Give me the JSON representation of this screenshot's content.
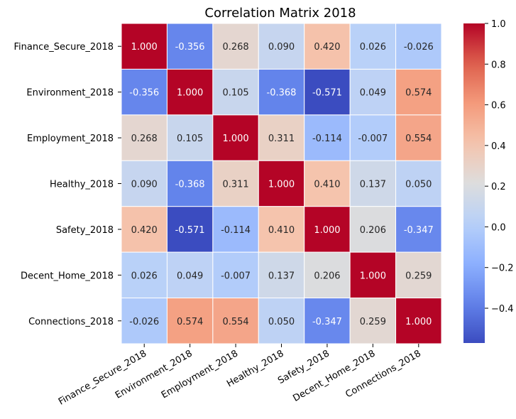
{
  "chart_data": {
    "type": "heatmap",
    "title": "Correlation Matrix 2018",
    "x_labels": [
      "Finance_Secure_2018",
      "Environment_2018",
      "Employment_2018",
      "Healthy_2018",
      "Safety_2018",
      "Decent_Home_2018",
      "Connections_2018"
    ],
    "y_labels": [
      "Finance_Secure_2018",
      "Environment_2018",
      "Employment_2018",
      "Healthy_2018",
      "Safety_2018",
      "Decent_Home_2018",
      "Connections_2018"
    ],
    "values": [
      [
        1.0,
        -0.356,
        0.268,
        0.09,
        0.42,
        0.026,
        -0.026
      ],
      [
        -0.356,
        1.0,
        0.105,
        -0.368,
        -0.571,
        0.049,
        0.574
      ],
      [
        0.268,
        0.105,
        1.0,
        0.311,
        -0.114,
        -0.007,
        0.554
      ],
      [
        0.09,
        -0.368,
        0.311,
        1.0,
        0.41,
        0.137,
        0.05
      ],
      [
        0.42,
        -0.571,
        -0.114,
        0.41,
        1.0,
        0.206,
        -0.347
      ],
      [
        0.026,
        0.049,
        -0.007,
        0.137,
        0.206,
        1.0,
        0.259
      ],
      [
        -0.026,
        0.574,
        0.554,
        0.05,
        -0.347,
        0.259,
        1.0
      ]
    ],
    "cell_labels": [
      [
        "1.000",
        "-0.356",
        "0.268",
        "0.090",
        "0.420",
        "0.026",
        "-0.026"
      ],
      [
        "-0.356",
        "1.000",
        "0.105",
        "-0.368",
        "-0.571",
        "0.049",
        "0.574"
      ],
      [
        "0.268",
        "0.105",
        "1.000",
        "0.311",
        "-0.114",
        "-0.007",
        "0.554"
      ],
      [
        "0.090",
        "-0.368",
        "0.311",
        "1.000",
        "0.410",
        "0.137",
        "0.050"
      ],
      [
        "0.420",
        "-0.571",
        "-0.114",
        "0.410",
        "1.000",
        "0.206",
        "-0.347"
      ],
      [
        "0.026",
        "0.049",
        "-0.007",
        "0.137",
        "0.206",
        "1.000",
        "0.259"
      ],
      [
        "-0.026",
        "0.574",
        "0.554",
        "0.050",
        "-0.347",
        "0.259",
        "1.000"
      ]
    ],
    "colormap": "coolwarm",
    "color_range": [
      -0.571,
      1.0
    ],
    "colorbar_ticks": [
      1.0,
      0.8,
      0.6,
      0.4,
      0.2,
      0.0,
      -0.2,
      -0.4
    ],
    "colorbar_tick_labels": [
      "1.0",
      "0.8",
      "0.6",
      "0.4",
      "0.2",
      "0.0",
      "−0.2",
      "−0.4"
    ],
    "cell_border_color": "#ffffff",
    "x_tick_rotation_deg": 30
  }
}
